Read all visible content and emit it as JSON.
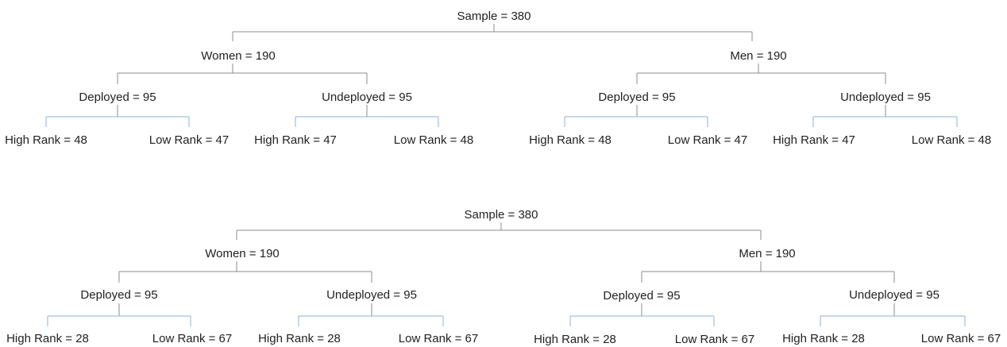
{
  "colors": {
    "line_dark": "#8c8c8c",
    "line_blue": "#8fb0d6",
    "text": "#222222"
  },
  "tree1": {
    "root": "Sample = 380",
    "women": "Women = 190",
    "men": "Men = 190",
    "w_deployed": "Deployed = 95",
    "w_undeployed": "Undeployed = 95",
    "m_deployed": "Deployed = 95",
    "m_undeployed": "Undeployed = 95",
    "wd_high": "High Rank = 48",
    "wd_low": "Low Rank = 47",
    "wu_high": "High Rank = 47",
    "wu_low": "Low Rank = 48",
    "md_high": "High Rank = 48",
    "md_low": "Low Rank = 47",
    "mu_high": "High Rank = 47",
    "mu_low": "Low Rank = 48"
  },
  "tree2": {
    "root": "Sample = 380",
    "women": "Women = 190",
    "men": "Men = 190",
    "w_deployed": "Deployed = 95",
    "w_undeployed": "Undeployed = 95",
    "m_deployed": "Deployed = 95",
    "m_undeployed": "Undeployed = 95",
    "wd_high": "High Rank = 28",
    "wd_low": "Low Rank = 67",
    "wu_high": "High Rank = 28",
    "wu_low": "Low Rank = 67",
    "md_high": "High Rank = 28",
    "md_low": "Low Rank = 67",
    "mu_high": "High Rank = 28",
    "mu_low": "Low Rank = 67"
  }
}
